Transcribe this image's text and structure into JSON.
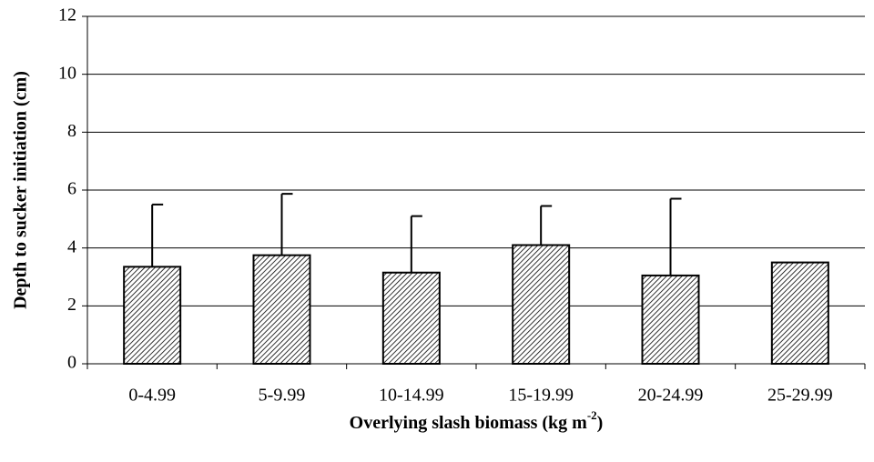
{
  "chart_data": {
    "type": "bar",
    "ylabel": "Depth to sucker initiation (cm)",
    "xlabel": {
      "text": "Overlying slash biomass (kg m",
      "sup": "-2",
      "end": ")"
    },
    "categories": [
      "0-4.99",
      "5-9.99",
      "10-14.99",
      "15-19.99",
      "20-24.99",
      "25-29.99"
    ],
    "values": [
      3.35,
      3.75,
      3.15,
      4.1,
      3.05,
      3.5
    ],
    "errors": [
      2.15,
      2.12,
      1.95,
      1.35,
      2.65,
      null
    ],
    "color": "#000000",
    "ylim": [
      0,
      12
    ],
    "yticks": [
      0,
      2,
      4,
      6,
      8,
      10,
      12
    ],
    "grid": true
  }
}
